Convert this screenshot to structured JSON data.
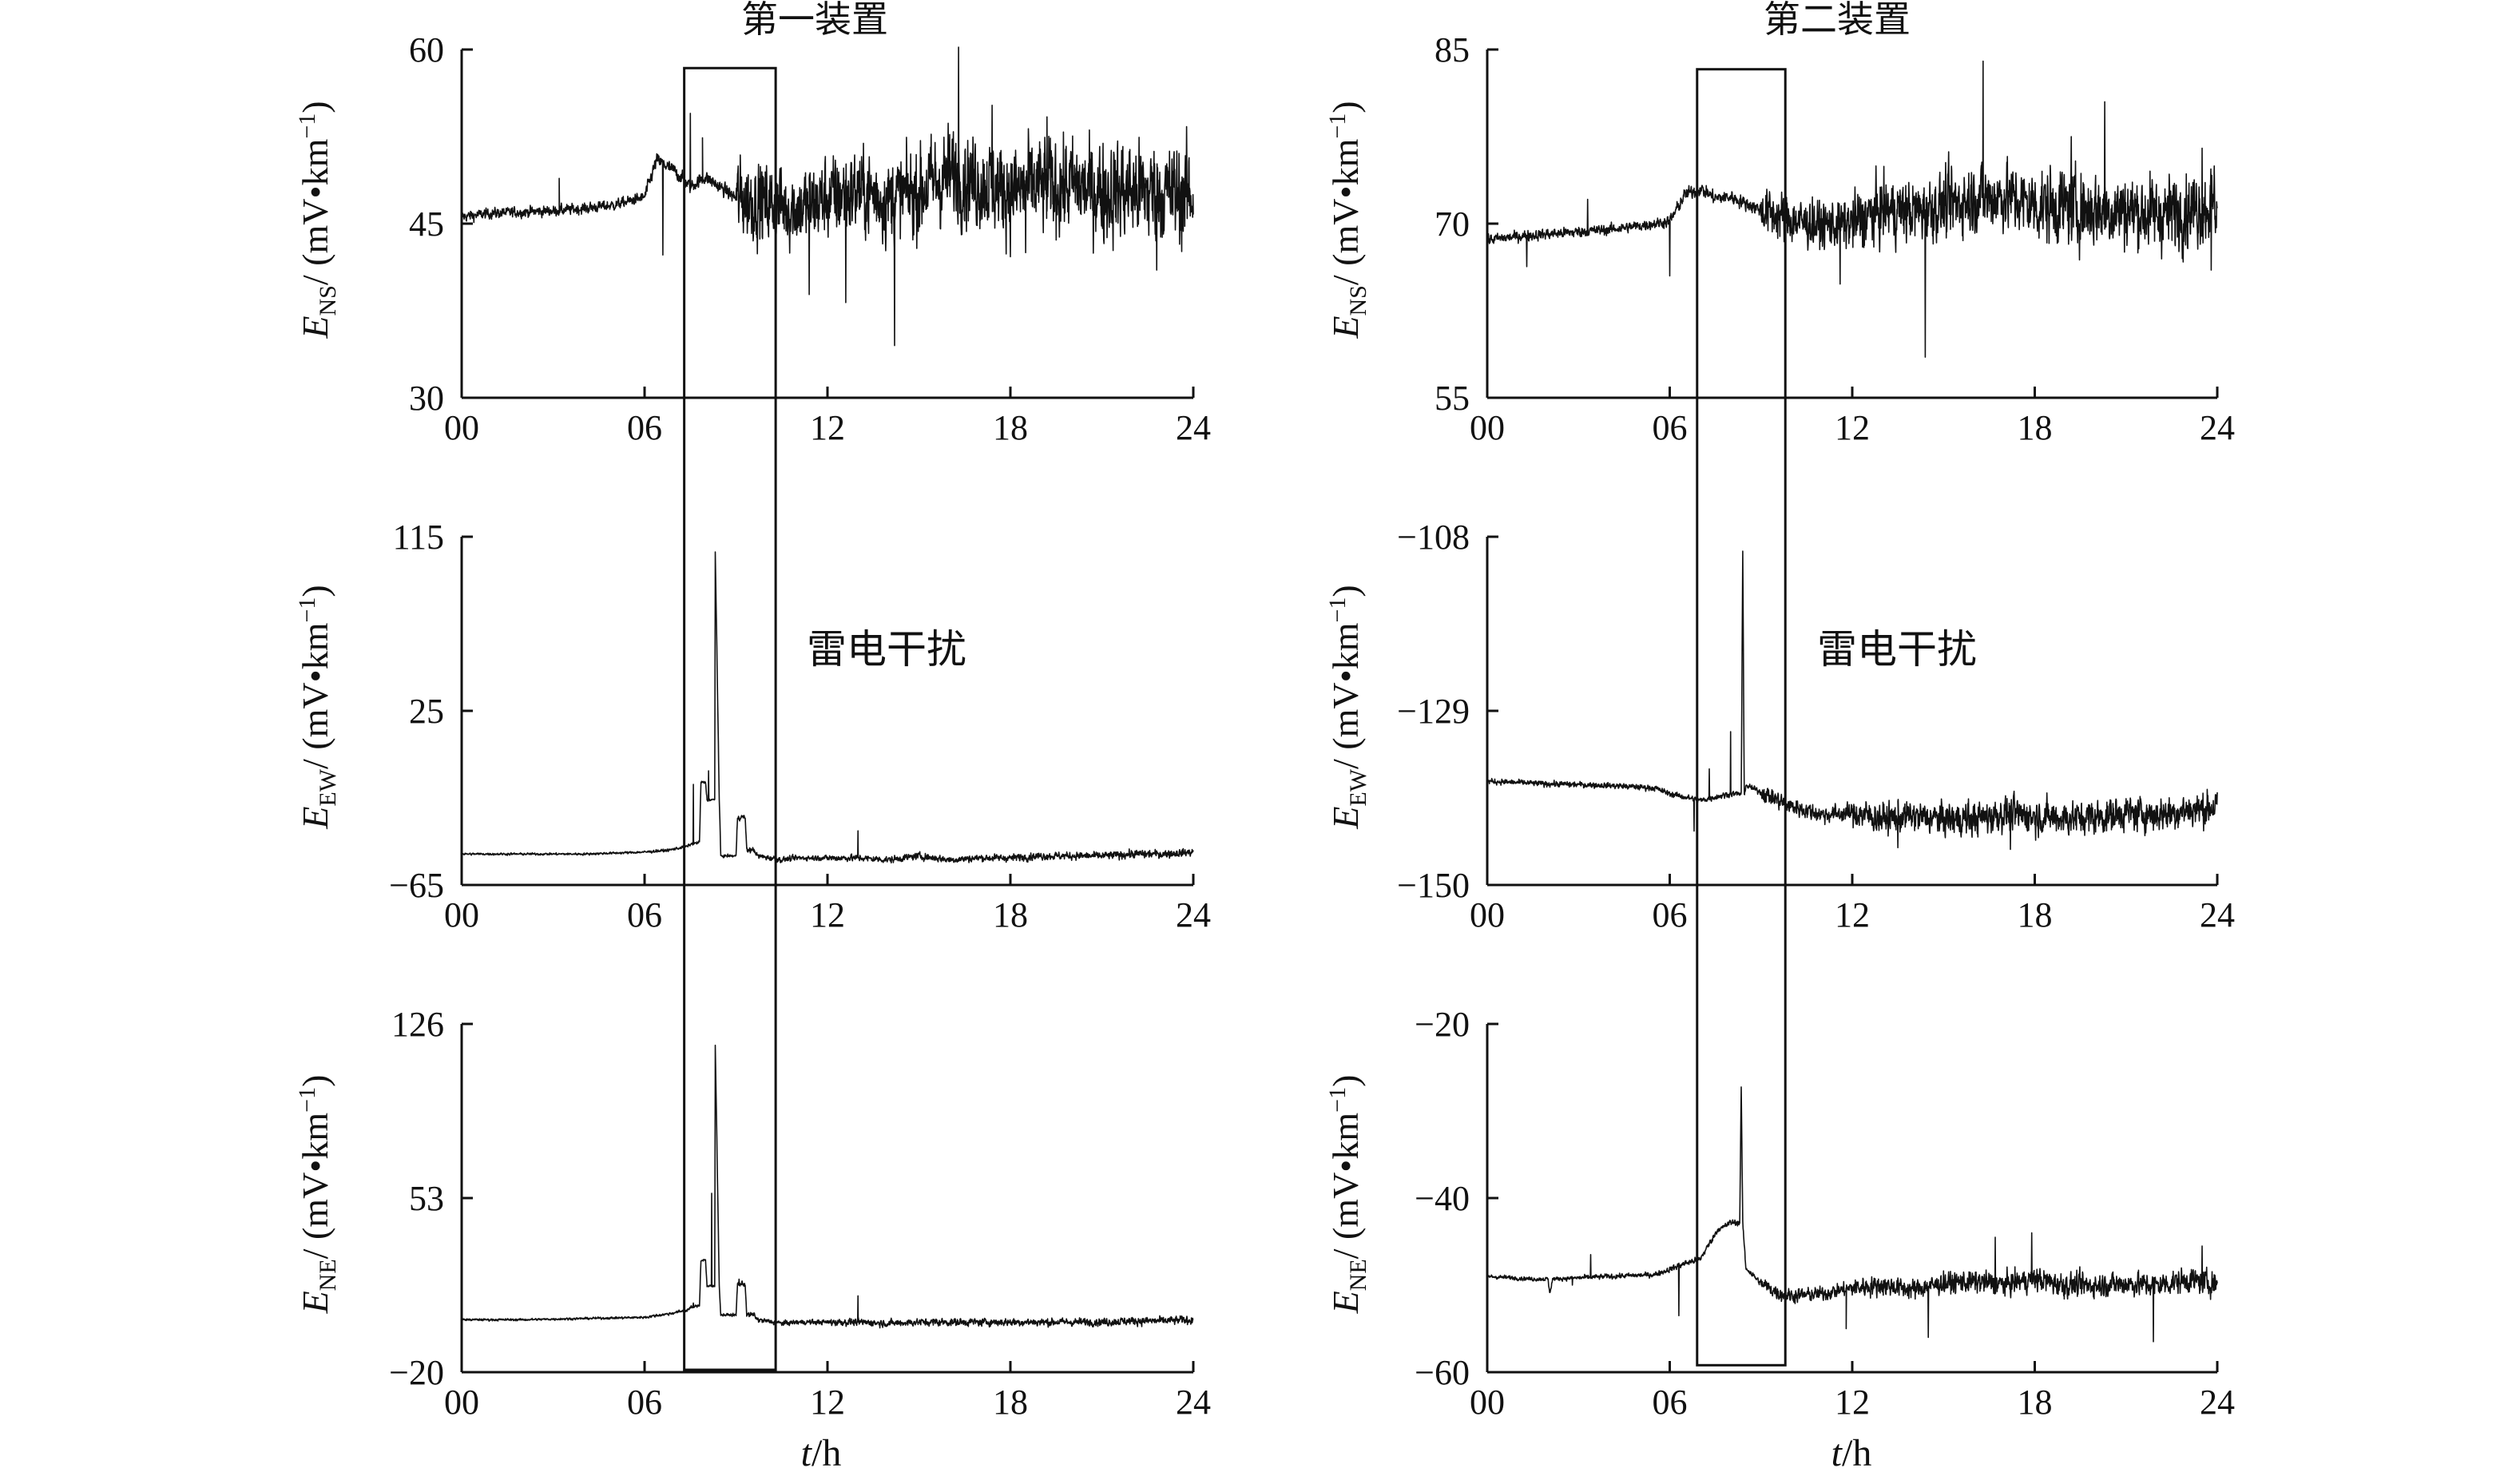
{
  "titles": [
    "第一装置",
    "第二装置"
  ],
  "annotation": "雷电干扰",
  "xlabel": {
    "var": "t",
    "unit": "/h"
  },
  "ylabels": [
    {
      "sym": "E",
      "sub": "NS",
      "unit": "/ (mV•km",
      "sup": "−1",
      "close": ")"
    },
    {
      "sym": "E",
      "sub": "EW",
      "unit": "/ (mV•km",
      "sup": "−1",
      "close": ")"
    },
    {
      "sym": "E",
      "sub": "NE",
      "unit": "/ (mV•km",
      "sup": "−1",
      "close": ")"
    }
  ],
  "chart_data": [
    {
      "type": "line",
      "device": "第一装置",
      "component": "NS",
      "xticks": [
        "00",
        "06",
        "12",
        "18",
        "24"
      ],
      "xlim": [
        0,
        24
      ],
      "yticks": [
        "30",
        "45",
        "60"
      ],
      "ylim": [
        30,
        60
      ],
      "highlight": {
        "x": [
          7.3,
          10.3
        ],
        "y_top": 58.4
      },
      "series": [
        {
          "noise": [
            0.4,
            0.4,
            0.5,
            3.0,
            3.2,
            3.5,
            3.6,
            3.8
          ],
          "x": [
            0,
            1,
            2,
            3,
            4,
            5,
            6,
            6.4,
            7.0,
            7.5,
            8.0,
            9.0,
            10.0,
            11.0,
            12.0,
            13.0,
            14.0,
            15.0,
            16.0,
            17.0,
            18.0,
            19.0,
            20.0,
            21.0,
            22.0,
            23.0,
            24.0
          ],
          "y": [
            45.6,
            45.9,
            46.0,
            46.1,
            46.3,
            46.6,
            47.3,
            50.5,
            49.5,
            48.2,
            49.0,
            47.2,
            46.8,
            46.3,
            47.2,
            47.8,
            47.1,
            47.8,
            49.2,
            48.6,
            47.8,
            48.2,
            48.3,
            47.7,
            47.9,
            47.6,
            47.5
          ]
        }
      ],
      "spikes": [
        [
          3.2,
          48.9
        ],
        [
          6.6,
          42.3
        ],
        [
          7.5,
          54.5
        ],
        [
          7.9,
          52.4
        ],
        [
          11.4,
          38.9
        ],
        [
          12.6,
          38.2
        ],
        [
          14.2,
          34.5
        ],
        [
          16.3,
          60.2
        ],
        [
          17.4,
          55.2
        ],
        [
          18.5,
          42.5
        ],
        [
          19.2,
          54.2
        ],
        [
          22.8,
          41.0
        ]
      ]
    },
    {
      "type": "line",
      "device": "第一装置",
      "component": "EW",
      "xticks": [
        "00",
        "06",
        "12",
        "18",
        "24"
      ],
      "xlim": [
        0,
        24
      ],
      "yticks": [
        "−65",
        "25",
        "115"
      ],
      "ylim": [
        -65,
        115
      ],
      "series": [
        {
          "noise": [
            0.5,
            0.5,
            0.6,
            1.2,
            1.5,
            1.6,
            1.7,
            1.8
          ],
          "x": [
            0,
            2,
            4,
            6,
            6.8,
            7.4,
            7.5,
            7.8,
            7.85,
            8.0,
            8.05,
            8.2,
            8.3,
            8.32,
            8.45,
            8.5,
            8.7,
            9.0,
            9.05,
            9.3,
            9.35,
            9.6,
            9.7,
            10.5,
            11,
            12,
            13,
            14,
            15,
            16,
            17,
            18,
            19,
            20,
            21,
            22,
            23,
            24
          ],
          "y": [
            -49,
            -49,
            -49,
            -48,
            -47,
            -45,
            -44,
            -43,
            -12,
            -12,
            -21,
            -21,
            -21,
            107,
            -21,
            -50,
            -50,
            -50,
            -30,
            -30,
            -47,
            -47,
            -50,
            -52,
            -51,
            -51,
            -51,
            -52,
            -50,
            -52,
            -51,
            -51,
            -50,
            -50,
            -50,
            -49,
            -49,
            -48
          ]
        }
      ],
      "spikes": [
        [
          7.6,
          -13
        ],
        [
          8.1,
          -6
        ],
        [
          13.0,
          -37
        ]
      ]
    },
    {
      "type": "line",
      "device": "第一装置",
      "component": "NE",
      "xticks": [
        "00",
        "06",
        "12",
        "18",
        "24"
      ],
      "xlim": [
        0,
        24
      ],
      "yticks": [
        "−20",
        "53",
        "126"
      ],
      "ylim": [
        -20,
        126
      ],
      "highlight": {
        "y_bottom": -19
      },
      "series": [
        {
          "noise": [
            0.4,
            0.4,
            0.5,
            0.9,
            1.3,
            1.4,
            1.4,
            1.5
          ],
          "x": [
            0,
            2,
            4,
            6,
            6.8,
            7.4,
            7.5,
            7.8,
            7.85,
            8.0,
            8.05,
            8.2,
            8.3,
            8.32,
            8.45,
            8.5,
            8.7,
            9.0,
            9.05,
            9.3,
            9.35,
            9.6,
            9.7,
            10.5,
            11,
            12,
            13,
            14,
            15,
            16,
            17,
            18,
            19,
            20,
            21,
            22,
            23,
            24
          ],
          "y": [
            2,
            2,
            2.5,
            3,
            4.5,
            6,
            7,
            8,
            27,
            27,
            16,
            16,
            16,
            117,
            16,
            4,
            4,
            4,
            17,
            17,
            4,
            4,
            2,
            0.5,
            1,
            1,
            1,
            0.5,
            1,
            1,
            1,
            1,
            1,
            1,
            1,
            1.5,
            1.5,
            2
          ]
        }
      ],
      "spikes": [
        [
          7.6,
          9
        ],
        [
          8.2,
          55
        ],
        [
          9.1,
          19
        ],
        [
          13.0,
          12
        ]
      ]
    },
    {
      "type": "line",
      "device": "第二装置",
      "component": "NS",
      "xticks": [
        "00",
        "06",
        "12",
        "18",
        "24"
      ],
      "xlim": [
        0,
        24
      ],
      "yticks": [
        "55",
        "70",
        "85"
      ],
      "ylim": [
        55,
        85
      ],
      "highlight": {
        "x": [
          6.9,
          9.8
        ],
        "y_top": 83.3
      },
      "series": [
        {
          "noise": [
            0.4,
            0.4,
            0.5,
            1.8,
            2.3,
            2.6,
            2.8,
            2.8
          ],
          "x": [
            0,
            1,
            2,
            3,
            4,
            5,
            6,
            6.5,
            7.0,
            7.5,
            8.0,
            9.0,
            10,
            11,
            12,
            13,
            14,
            15,
            16,
            17,
            18,
            19,
            20,
            21,
            22,
            23,
            24
          ],
          "y": [
            68.6,
            68.9,
            69.1,
            69.3,
            69.5,
            69.8,
            70.2,
            72.5,
            73.0,
            72.2,
            72.3,
            71.2,
            70.3,
            69.8,
            70.0,
            71.2,
            71.0,
            71.5,
            72.2,
            72.4,
            71.6,
            71.5,
            71.2,
            71.2,
            70.8,
            71.2,
            71.8
          ]
        }
      ],
      "spikes": [
        [
          1.3,
          66.3
        ],
        [
          3.3,
          72.1
        ],
        [
          6.0,
          65.5
        ],
        [
          11.6,
          64.8
        ],
        [
          14.4,
          58.5
        ],
        [
          16.3,
          84.0
        ],
        [
          19.2,
          77.5
        ],
        [
          20.3,
          80.5
        ],
        [
          23.5,
          76.5
        ],
        [
          23.8,
          66.0
        ]
      ]
    },
    {
      "type": "line",
      "device": "第二装置",
      "component": "EW",
      "xticks": [
        "00",
        "06",
        "12",
        "18",
        "24"
      ],
      "xlim": [
        0,
        24
      ],
      "yticks": [
        "−108",
        "−129",
        "−150"
      ],
      "ylim": [
        -150,
        -108
      ],
      "series": [
        {
          "noise": [
            0.3,
            0.3,
            0.3,
            0.9,
            1.6,
            1.8,
            1.8,
            1.8
          ],
          "x": [
            0,
            2,
            4,
            5.5,
            6,
            7,
            8,
            8.35,
            8.4,
            8.45,
            8.5,
            9,
            10,
            11,
            12,
            13,
            14,
            15,
            16,
            17,
            18,
            19,
            20,
            21,
            22,
            23,
            24
          ],
          "y": [
            -137.5,
            -137.8,
            -138.0,
            -138.3,
            -139.0,
            -139.8,
            -139.0,
            -139.0,
            -110.0,
            -139.0,
            -138.0,
            -138.8,
            -140.5,
            -141.5,
            -141.3,
            -142.0,
            -141.7,
            -142.0,
            -142.0,
            -141.4,
            -141.7,
            -141.9,
            -141.8,
            -141.3,
            -141.5,
            -141.0,
            -140.5
          ]
        }
      ],
      "spikes": [
        [
          8.0,
          -131.5
        ],
        [
          7.3,
          -136
        ],
        [
          6.8,
          -143.5
        ],
        [
          13.5,
          -145.5
        ],
        [
          17.2,
          -145.7
        ]
      ]
    },
    {
      "type": "line",
      "device": "第二装置",
      "component": "NE",
      "xticks": [
        "00",
        "06",
        "12",
        "18",
        "24"
      ],
      "xlim": [
        0,
        24
      ],
      "yticks": [
        "−20",
        "−40",
        "−60"
      ],
      "ylim": [
        -60,
        -20
      ],
      "highlight": {
        "y_bottom": -59.2
      },
      "series": [
        {
          "noise": [
            0.2,
            0.25,
            0.3,
            0.7,
            1.0,
            1.1,
            1.2,
            1.2
          ],
          "x": [
            0,
            1.5,
            2.0,
            2.05,
            2.15,
            4,
            5.5,
            6,
            6.5,
            7.0,
            7.6,
            7.7,
            8.0,
            8.3,
            8.35,
            8.4,
            8.5,
            9.0,
            9.6,
            10,
            11,
            12,
            13,
            14,
            15,
            16,
            17,
            18,
            19,
            20,
            21,
            22,
            23,
            24
          ],
          "y": [
            -49.0,
            -49.3,
            -49.3,
            -51.0,
            -49.3,
            -49.0,
            -48.8,
            -48.2,
            -47.5,
            -47.0,
            -43.5,
            -43.5,
            -42.8,
            -42.8,
            -27.5,
            -42.8,
            -48.0,
            -49.8,
            -51.0,
            -51.2,
            -51.0,
            -50.3,
            -50.0,
            -50.5,
            -49.8,
            -49.6,
            -49.9,
            -49.3,
            -50.0,
            -50.0,
            -49.8,
            -50.0,
            -49.4,
            -49.8
          ]
        }
      ],
      "spikes": [
        [
          6.3,
          -53.5
        ],
        [
          2.8,
          -50.0
        ],
        [
          3.4,
          -46.5
        ],
        [
          11.8,
          -55.0
        ],
        [
          14.5,
          -56.0
        ],
        [
          16.7,
          -44.5
        ],
        [
          17.9,
          -44.0
        ],
        [
          21.9,
          -56.5
        ],
        [
          23.5,
          -45.5
        ]
      ]
    }
  ]
}
